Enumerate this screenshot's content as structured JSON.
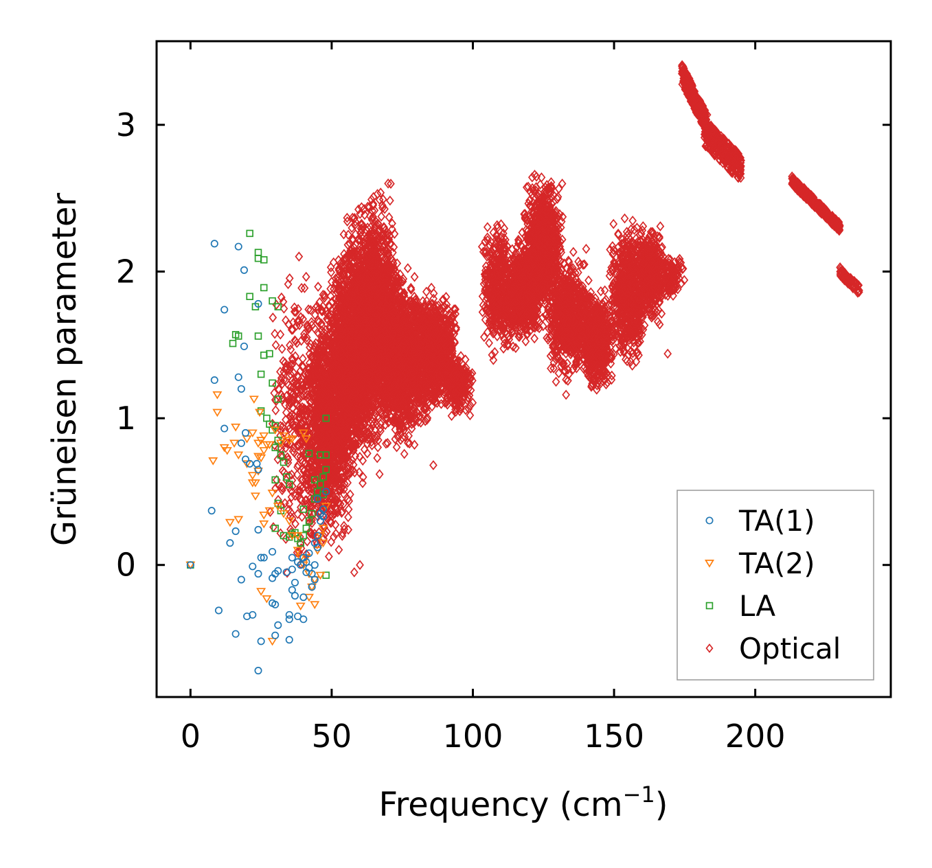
{
  "chart_data": {
    "type": "scatter",
    "title": "",
    "xlabel": "Frequency (cm",
    "xlabel_sup": "−1",
    "xlabel_close": ")",
    "ylabel": "Grüneisen parameter",
    "xlim": [
      -12,
      248
    ],
    "ylim": [
      -0.9,
      3.57
    ],
    "xticks": [
      0,
      50,
      100,
      150,
      200
    ],
    "xtick_labels": [
      "0",
      "50",
      "100",
      "150",
      "200"
    ],
    "yticks": [
      0,
      1,
      2,
      3
    ],
    "ytick_labels": [
      "0",
      "1",
      "2",
      "3"
    ],
    "grid": false,
    "legend_position": "lower-right",
    "series": [
      {
        "name": "TA(1)",
        "marker": "circle",
        "color": "#1f77b4",
        "points": [
          [
            0,
            0
          ],
          [
            8.5,
            2.19
          ],
          [
            17,
            2.17
          ],
          [
            19,
            2.01
          ],
          [
            12,
            1.74
          ],
          [
            24,
            1.78
          ],
          [
            19,
            1.49
          ],
          [
            8.5,
            1.26
          ],
          [
            17,
            1.28
          ],
          [
            18,
            1.2
          ],
          [
            12,
            0.93
          ],
          [
            18,
            0.83
          ],
          [
            19.5,
            0.9
          ],
          [
            19.5,
            0.72
          ],
          [
            21,
            0.69
          ],
          [
            23.5,
            0.69
          ],
          [
            24,
            0.65
          ],
          [
            7.5,
            0.37
          ],
          [
            16,
            0.23
          ],
          [
            24,
            0.24
          ],
          [
            14,
            0.15
          ],
          [
            25,
            0.05
          ],
          [
            26,
            0.05
          ],
          [
            29,
            0.09
          ],
          [
            22,
            -0.01
          ],
          [
            24,
            -0.06
          ],
          [
            18,
            -0.1
          ],
          [
            29,
            -0.09
          ],
          [
            30,
            -0.06
          ],
          [
            31,
            -0.04
          ],
          [
            29,
            -0.26
          ],
          [
            30,
            -0.27
          ],
          [
            31,
            -0.41
          ],
          [
            34,
            -0.05
          ],
          [
            36,
            -0.03
          ],
          [
            37,
            -0.12
          ],
          [
            36,
            -0.17
          ],
          [
            37,
            -0.21
          ],
          [
            40,
            -0.22
          ],
          [
            10,
            -0.31
          ],
          [
            22,
            -0.34
          ],
          [
            20,
            -0.35
          ],
          [
            35,
            -0.34
          ],
          [
            35,
            -0.37
          ],
          [
            38,
            -0.35
          ],
          [
            40,
            -0.37
          ],
          [
            16,
            -0.47
          ],
          [
            30,
            -0.48
          ],
          [
            25,
            -0.52
          ],
          [
            35,
            -0.51
          ],
          [
            24,
            -0.72
          ],
          [
            36,
            0.05
          ],
          [
            38,
            0.02
          ],
          [
            40,
            0.05
          ],
          [
            41,
            0.02
          ],
          [
            42,
            0.08
          ],
          [
            42,
            -0.02
          ],
          [
            43,
            -0.06
          ],
          [
            44,
            0.0
          ],
          [
            44,
            0.15
          ],
          [
            45,
            0.12
          ],
          [
            45,
            0.2
          ],
          [
            46,
            0.3
          ],
          [
            46,
            0.35
          ],
          [
            47,
            0.38
          ],
          [
            47,
            0.33
          ],
          [
            45,
            0.45
          ],
          [
            48,
            0.5
          ],
          [
            44,
            -0.1
          ],
          [
            43,
            -0.15
          ],
          [
            39,
            0.0
          ],
          [
            41,
            -0.05
          ]
        ]
      },
      {
        "name": "TA(2)",
        "marker": "triangle-down",
        "color": "#ff7f0e",
        "points": [
          [
            0,
            0
          ],
          [
            9.5,
            1.16
          ],
          [
            9.5,
            1.04
          ],
          [
            16,
            0.94
          ],
          [
            12,
            0.8
          ],
          [
            13,
            0.78
          ],
          [
            15.5,
            0.83
          ],
          [
            8,
            0.71
          ],
          [
            20,
            0.86
          ],
          [
            22,
            0.9
          ],
          [
            22,
            0.56
          ],
          [
            23,
            0.56
          ],
          [
            24,
            0.64
          ],
          [
            23,
            0.47
          ],
          [
            20,
            0.69
          ],
          [
            22,
            0.61
          ],
          [
            17,
            0.75
          ],
          [
            24.5,
            1.04
          ],
          [
            22.5,
            1.13
          ],
          [
            24,
            0.83
          ],
          [
            25,
            0.85
          ],
          [
            26,
            0.88
          ],
          [
            26,
            0.78
          ],
          [
            27,
            0.82
          ],
          [
            28,
            0.82
          ],
          [
            30,
            0.92
          ],
          [
            32,
            0.83
          ],
          [
            33,
            0.88
          ],
          [
            35,
            0.85
          ],
          [
            36,
            0.86
          ],
          [
            40,
            0.9
          ],
          [
            41,
            0.86
          ],
          [
            25,
            0.73
          ],
          [
            24,
            0.74
          ],
          [
            14,
            0.29
          ],
          [
            17,
            0.31
          ],
          [
            26,
            0.28
          ],
          [
            26,
            0.34
          ],
          [
            28,
            0.37
          ],
          [
            29,
            0.49
          ],
          [
            31,
            0.4
          ],
          [
            33,
            0.35
          ],
          [
            35,
            0.3
          ],
          [
            36,
            0.2
          ],
          [
            38,
            0.2
          ],
          [
            38,
            0.1
          ],
          [
            39,
            0.05
          ],
          [
            41,
            0.05
          ],
          [
            40,
            0.0
          ],
          [
            42,
            -0.06
          ],
          [
            43,
            -0.15
          ],
          [
            44,
            -0.1
          ],
          [
            45,
            0.1
          ],
          [
            46,
            0.2
          ],
          [
            47,
            0.25
          ],
          [
            48,
            0.4
          ],
          [
            25,
            -0.18
          ],
          [
            27,
            -0.23
          ],
          [
            29,
            -0.52
          ],
          [
            39,
            -0.28
          ],
          [
            42,
            -0.22
          ],
          [
            44,
            -0.27
          ],
          [
            46,
            -0.07
          ],
          [
            47,
            0.15
          ]
        ]
      },
      {
        "name": "LA",
        "marker": "square",
        "color": "#2ca02c",
        "points": [
          [
            0,
            0
          ],
          [
            21,
            2.26
          ],
          [
            24,
            2.13
          ],
          [
            24,
            2.09
          ],
          [
            26,
            2.08
          ],
          [
            26,
            1.89
          ],
          [
            21,
            1.83
          ],
          [
            23,
            1.76
          ],
          [
            29,
            1.8
          ],
          [
            31,
            1.76
          ],
          [
            15,
            1.51
          ],
          [
            16,
            1.57
          ],
          [
            17,
            1.56
          ],
          [
            24,
            1.56
          ],
          [
            26,
            1.43
          ],
          [
            28,
            1.44
          ],
          [
            25,
            1.3
          ],
          [
            29,
            1.24
          ],
          [
            31,
            1.13
          ],
          [
            25,
            1.05
          ],
          [
            27,
            1.0
          ],
          [
            28,
            0.96
          ],
          [
            29,
            0.92
          ],
          [
            30,
            0.95
          ],
          [
            31,
            0.85
          ],
          [
            30,
            0.8
          ],
          [
            32,
            0.75
          ],
          [
            33,
            0.7
          ],
          [
            34,
            0.6
          ],
          [
            35,
            0.55
          ],
          [
            30,
            0.58
          ],
          [
            31,
            0.42
          ],
          [
            32,
            0.37
          ],
          [
            30,
            0.25
          ],
          [
            33,
            0.2
          ],
          [
            35,
            0.19
          ],
          [
            36,
            0.21
          ],
          [
            37,
            0.22
          ],
          [
            38,
            0.18
          ],
          [
            39,
            0.15
          ],
          [
            40,
            0.2
          ],
          [
            41,
            0.25
          ],
          [
            42,
            0.3
          ],
          [
            43,
            0.35
          ],
          [
            44,
            0.45
          ],
          [
            45,
            0.5
          ],
          [
            46,
            0.55
          ],
          [
            47,
            0.6
          ],
          [
            48,
            0.65
          ],
          [
            46,
            0.75
          ],
          [
            48,
            0.75
          ],
          [
            48,
            1.0
          ],
          [
            42,
            0.76
          ],
          [
            44,
            0.58
          ],
          [
            47,
            0.48
          ],
          [
            48,
            -0.07
          ],
          [
            40,
            0.38
          ]
        ]
      },
      {
        "name": "Optical",
        "marker": "diamond",
        "color": "#d62728",
        "regions": [
          [
            28,
            50,
            -0.25,
            2.2,
            420
          ],
          [
            40,
            58,
            -0.05,
            2.0,
            1200
          ],
          [
            48,
            68,
            0.5,
            2.4,
            1600
          ],
          [
            55,
            75,
            0.8,
            2.65,
            1600
          ],
          [
            65,
            85,
            0.7,
            2.1,
            1400
          ],
          [
            78,
            95,
            0.95,
            1.95,
            900
          ],
          [
            90,
            100,
            1.0,
            1.45,
            250
          ],
          [
            103,
            115,
            1.35,
            2.45,
            450
          ],
          [
            112,
            124,
            1.45,
            2.3,
            650
          ],
          [
            118,
            132,
            1.6,
            2.72,
            900
          ],
          [
            126,
            142,
            1.2,
            2.2,
            700
          ],
          [
            138,
            150,
            1.12,
            1.95,
            600
          ],
          [
            148,
            162,
            1.3,
            2.42,
            650
          ],
          [
            158,
            168,
            1.6,
            2.4,
            400
          ],
          [
            166,
            175,
            1.8,
            2.15,
            120
          ]
        ],
        "bands": [
          [
            174,
            3.35,
            183,
            3.0,
            0.14,
            300
          ],
          [
            182,
            2.95,
            195,
            2.7,
            0.18,
            300
          ],
          [
            213,
            2.62,
            230,
            2.3,
            0.06,
            300
          ],
          [
            230,
            2.0,
            237,
            1.87,
            0.06,
            80
          ]
        ],
        "points": [
          [
            133,
            1.16
          ],
          [
            134,
            1.3
          ],
          [
            169,
            1.44
          ],
          [
            99,
            1.02
          ],
          [
            58,
            -0.05
          ],
          [
            60,
            0.0
          ],
          [
            86,
            0.68
          ],
          [
            70,
            2.6
          ]
        ]
      }
    ]
  }
}
